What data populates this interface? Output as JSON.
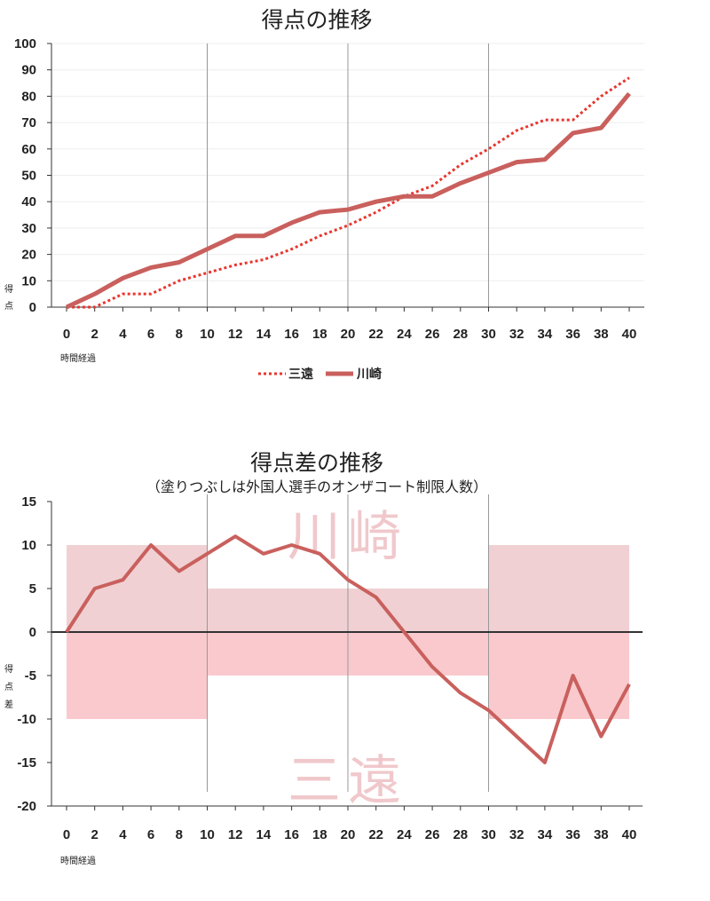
{
  "colors": {
    "kawasaki": "#c9605d",
    "sanen": "#e8362e",
    "band_inner": "#f0d0d3",
    "band_outer": "#f9c9cd",
    "divider": "#999999",
    "grid": "#eeeeee"
  },
  "chart_data": [
    {
      "type": "line",
      "title": "得点の推移",
      "xlabel": "時間経過",
      "ylabel": [
        "得",
        "点"
      ],
      "ylim": [
        0,
        100
      ],
      "yticks": [
        0,
        10,
        20,
        30,
        40,
        50,
        60,
        70,
        80,
        90,
        100
      ],
      "xlim": [
        0,
        40
      ],
      "xticks": [
        0,
        2,
        4,
        6,
        8,
        10,
        12,
        14,
        16,
        18,
        20,
        22,
        24,
        26,
        28,
        30,
        32,
        34,
        36,
        38,
        40
      ],
      "period_dividers": [
        10,
        20,
        30
      ],
      "series": [
        {
          "name": "三遠",
          "style": "dotted",
          "x": [
            0,
            2,
            4,
            6,
            8,
            10,
            12,
            14,
            16,
            18,
            20,
            22,
            24,
            26,
            28,
            30,
            32,
            34,
            36,
            38,
            40
          ],
          "values": [
            0,
            0,
            5,
            5,
            10,
            13,
            16,
            18,
            22,
            27,
            31,
            36,
            42,
            46,
            54,
            60,
            67,
            71,
            71,
            80,
            87
          ]
        },
        {
          "name": "川崎",
          "style": "solid",
          "x": [
            0,
            2,
            4,
            6,
            8,
            10,
            12,
            14,
            16,
            18,
            20,
            22,
            24,
            26,
            28,
            30,
            32,
            34,
            36,
            38,
            40
          ],
          "values": [
            0,
            5,
            11,
            15,
            17,
            22,
            27,
            27,
            32,
            36,
            37,
            40,
            42,
            42,
            47,
            51,
            55,
            56,
            66,
            68,
            81
          ]
        }
      ],
      "legend": [
        "三遠",
        "川崎"
      ]
    },
    {
      "type": "line",
      "title": "得点差の推移",
      "subtitle": "（塗りつぶしは外国人選手のオンザコート制限人数）",
      "xlabel": "時間経過",
      "ylabel": [
        "得",
        "点",
        "差"
      ],
      "ylim": [
        -20,
        15
      ],
      "yticks": [
        -20,
        -15,
        -10,
        -5,
        0,
        5,
        10,
        15
      ],
      "xlim": [
        0,
        40
      ],
      "xticks": [
        0,
        2,
        4,
        6,
        8,
        10,
        12,
        14,
        16,
        18,
        20,
        22,
        24,
        26,
        28,
        30,
        32,
        34,
        36,
        38,
        40
      ],
      "period_dividers": [
        10,
        20,
        30
      ],
      "bands": [
        {
          "from": 0,
          "to": 10,
          "limit": 10
        },
        {
          "from": 10,
          "to": 30,
          "limit": 5
        },
        {
          "from": 30,
          "to": 40,
          "limit": 10
        }
      ],
      "watermark_top": "川崎",
      "watermark_bottom": "三遠",
      "series": [
        {
          "name": "点差",
          "x": [
            0,
            2,
            4,
            6,
            8,
            10,
            12,
            14,
            16,
            18,
            20,
            22,
            24,
            26,
            28,
            30,
            32,
            34,
            36,
            38,
            40
          ],
          "values": [
            0,
            5,
            6,
            10,
            7,
            9,
            11,
            9,
            10,
            9,
            6,
            4,
            0,
            -4,
            -7,
            -9,
            -12,
            -15,
            -5,
            -12,
            -6
          ]
        }
      ]
    }
  ]
}
